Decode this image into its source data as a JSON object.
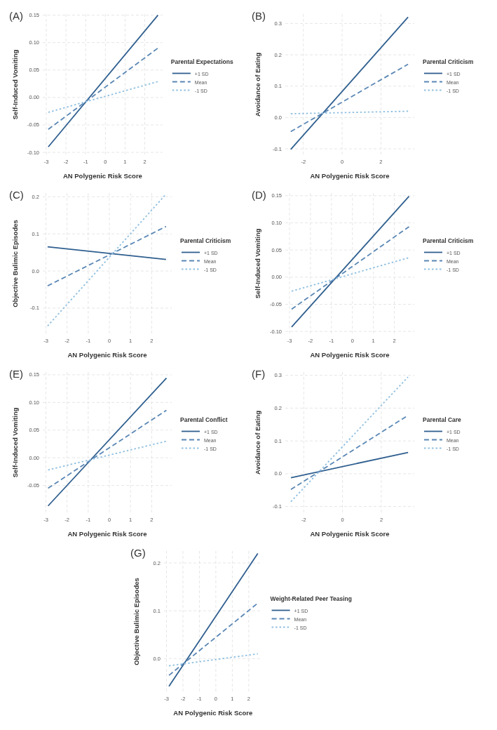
{
  "chart_data": [
    {
      "type": "line",
      "title": "(A)",
      "xlabel": "AN Polygenic Risk Score",
      "ylabel": "Self-Induced Vomiting",
      "legend_title": "Parental Expectations",
      "legend": "right",
      "grid": true,
      "x": [
        -2.9,
        2.67
      ],
      "xlim": [
        -3.18,
        2.9
      ],
      "xticks": [
        -3,
        -2,
        -1,
        0,
        1,
        2
      ],
      "ylim": [
        -0.105,
        0.152
      ],
      "yticks": [
        {
          "value": -0.1,
          "label": "-0.10"
        },
        -0.05,
        {
          "value": 0,
          "label": "0.00"
        },
        0.05,
        {
          "value": 0.1,
          "label": "0.10"
        },
        0.15
      ],
      "series": [
        {
          "name": "+1 SD",
          "color": "#2f5f8f",
          "line_style": "solid",
          "values": [
            -0.09,
            0.15
          ]
        },
        {
          "name": "Mean",
          "color": "#5a87b5",
          "line_style": "dashed",
          "values": [
            -0.058,
            0.09
          ]
        },
        {
          "name": "-1 SD",
          "color": "#8fbfe0",
          "line_style": "dotted",
          "values": [
            -0.027,
            0.029
          ]
        }
      ]
    },
    {
      "type": "line",
      "title": "(B)",
      "xlabel": "AN Polygenic Risk Score",
      "ylabel": "Avoidance of Eating",
      "legend_title": "Parental Criticism",
      "legend": "right",
      "grid": true,
      "x": [
        -2.65,
        3.4
      ],
      "xlim": [
        -2.93,
        3.72
      ],
      "xticks": [
        -2,
        0,
        2
      ],
      "ylim": [
        -0.12,
        0.33
      ],
      "yticks": [
        -0.1,
        {
          "value": 0,
          "label": "0.0"
        },
        0.1,
        0.2,
        0.3
      ],
      "series": [
        {
          "name": "+1 SD",
          "color": "#2f5f8f",
          "line_style": "solid",
          "values": [
            -0.102,
            0.32
          ]
        },
        {
          "name": "Mean",
          "color": "#5a87b5",
          "line_style": "dashed",
          "values": [
            -0.045,
            0.17
          ]
        },
        {
          "name": "-1 SD",
          "color": "#8fbfe0",
          "line_style": "dotted",
          "values": [
            0.012,
            0.02
          ]
        }
      ]
    },
    {
      "type": "line",
      "title": "(C)",
      "xlabel": "AN Polygenic Risk Score",
      "ylabel": "Objective Bulimic Episodes",
      "legend_title": "Parental Criticism",
      "legend": "right",
      "grid": true,
      "x": [
        -2.92,
        2.68
      ],
      "xlim": [
        -3.15,
        2.95
      ],
      "xticks": [
        -3,
        -2,
        -1,
        0,
        1,
        2
      ],
      "ylim": [
        -0.17,
        0.21
      ],
      "yticks": [
        -0.1,
        {
          "value": 0,
          "label": "0.0"
        },
        0.1,
        0.2
      ],
      "series": [
        {
          "name": "+1 SD",
          "color": "#2f5f8f",
          "line_style": "solid",
          "values": [
            0.065,
            0.031
          ]
        },
        {
          "name": "Mean",
          "color": "#5a87b5",
          "line_style": "dashed",
          "values": [
            -0.04,
            0.12
          ]
        },
        {
          "name": "-1 SD",
          "color": "#8fbfe0",
          "line_style": "dotted",
          "values": [
            -0.148,
            0.207
          ]
        }
      ]
    },
    {
      "type": "line",
      "title": "(D)",
      "xlabel": "AN Polygenic Risk Score",
      "ylabel": "Self-Induced Vomiting",
      "legend_title": "Parental Criticism",
      "legend": "right",
      "grid": true,
      "x": [
        -2.9,
        2.7
      ],
      "xlim": [
        -3.2,
        2.95
      ],
      "xticks": [
        -3,
        -2,
        -1,
        0,
        1,
        2
      ],
      "ylim": [
        -0.105,
        0.155
      ],
      "yticks": [
        {
          "value": -0.1,
          "label": "-0.10"
        },
        -0.05,
        {
          "value": 0,
          "label": "0.00"
        },
        0.05,
        {
          "value": 0.1,
          "label": "0.10"
        },
        0.15
      ],
      "series": [
        {
          "name": "+1 SD",
          "color": "#2f5f8f",
          "line_style": "solid",
          "values": [
            -0.092,
            0.149
          ]
        },
        {
          "name": "Mean",
          "color": "#5a87b5",
          "line_style": "dashed",
          "values": [
            -0.059,
            0.093
          ]
        },
        {
          "name": "-1 SD",
          "color": "#8fbfe0",
          "line_style": "dotted",
          "values": [
            -0.026,
            0.036
          ]
        }
      ]
    },
    {
      "type": "line",
      "title": "(E)",
      "xlabel": "AN Polygenic Risk Score",
      "ylabel": "Self-Induced Vomiting",
      "legend_title": "Parental Conflict",
      "legend": "right",
      "grid": true,
      "x": [
        -2.9,
        2.7
      ],
      "xlim": [
        -3.15,
        2.95
      ],
      "xticks": [
        -3,
        -2,
        -1,
        0,
        1,
        2
      ],
      "ylim": [
        -0.1,
        0.155
      ],
      "yticks": [
        -0.05,
        {
          "value": 0,
          "label": "0.00"
        },
        0.05,
        {
          "value": 0.1,
          "label": "0.10"
        },
        0.15
      ],
      "series": [
        {
          "name": "+1 SD",
          "color": "#2f5f8f",
          "line_style": "solid",
          "values": [
            -0.087,
            0.144
          ]
        },
        {
          "name": "Mean",
          "color": "#5a87b5",
          "line_style": "dashed",
          "values": [
            -0.055,
            0.086
          ]
        },
        {
          "name": "-1 SD",
          "color": "#8fbfe0",
          "line_style": "dotted",
          "values": [
            -0.022,
            0.03
          ]
        }
      ]
    },
    {
      "type": "line",
      "title": "(F)",
      "xlabel": "AN Polygenic Risk Score",
      "ylabel": "Avoidance of Eating",
      "legend_title": "Parental Care",
      "legend": "right",
      "grid": true,
      "x": [
        -2.66,
        3.38
      ],
      "xlim": [
        -2.95,
        3.7
      ],
      "xticks": [
        -2,
        0,
        2
      ],
      "ylim": [
        -0.12,
        0.31
      ],
      "yticks": [
        -0.1,
        {
          "value": 0,
          "label": "0.0"
        },
        0.1,
        0.2,
        0.3
      ],
      "series": [
        {
          "name": "+1 SD",
          "color": "#2f5f8f",
          "line_style": "solid",
          "values": [
            -0.012,
            0.065
          ]
        },
        {
          "name": "Mean",
          "color": "#5a87b5",
          "line_style": "dashed",
          "values": [
            -0.048,
            0.178
          ]
        },
        {
          "name": "-1 SD",
          "color": "#8fbfe0",
          "line_style": "dotted",
          "values": [
            -0.085,
            0.295
          ]
        }
      ]
    },
    {
      "type": "line",
      "title": "(G)",
      "xlabel": "AN Polygenic Risk Score",
      "ylabel": "Objective Bulimic Episodes",
      "legend_title": "Weight-Related Peer Teasing",
      "legend": "right",
      "grid": true,
      "x": [
        -2.85,
        2.55
      ],
      "xlim": [
        -3.15,
        2.8
      ],
      "xticks": [
        -3,
        -2,
        -1,
        0,
        1,
        2
      ],
      "ylim": [
        -0.07,
        0.225
      ],
      "yticks": [
        {
          "value": 0,
          "label": "0.0"
        },
        0.1,
        0.2
      ],
      "series": [
        {
          "name": "+1 SD",
          "color": "#2f5f8f",
          "line_style": "solid",
          "values": [
            -0.058,
            0.22
          ]
        },
        {
          "name": "Mean",
          "color": "#5a87b5",
          "line_style": "dashed",
          "values": [
            -0.035,
            0.116
          ]
        },
        {
          "name": "-1 SD",
          "color": "#8fbfe0",
          "line_style": "dotted",
          "values": [
            -0.015,
            0.01
          ]
        }
      ]
    }
  ]
}
